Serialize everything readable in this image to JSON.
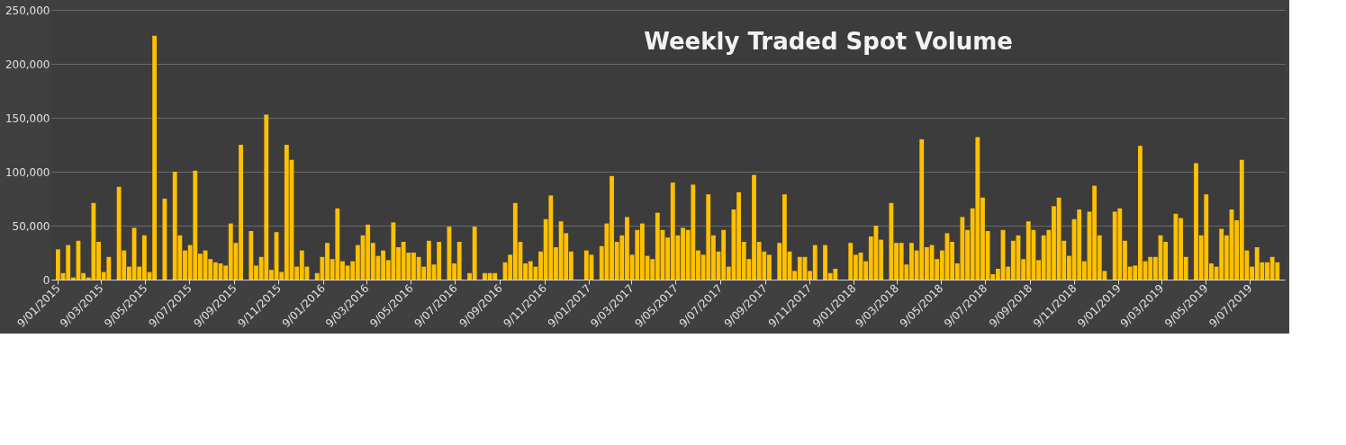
{
  "chart_data": {
    "type": "bar",
    "title": "Weekly Traded Spot Volume",
    "color": "#ffc000",
    "grid": "y",
    "ylim": [
      0,
      250000
    ],
    "yticks": [
      {
        "value": 0,
        "label": "0"
      },
      {
        "value": 50000,
        "label": "50,000"
      },
      {
        "value": 100000,
        "label": "100,000"
      },
      {
        "value": 150000,
        "label": "150,000"
      },
      {
        "value": 200000,
        "label": "200,000"
      },
      {
        "value": 250000,
        "label": "250,000"
      }
    ],
    "xlim": [
      "2015-01-06",
      "2019-08-20"
    ],
    "xticks": [
      {
        "value": "2015-01-09",
        "label": "9/01/2015"
      },
      {
        "value": "2015-03-09",
        "label": "9/03/2015"
      },
      {
        "value": "2015-05-09",
        "label": "9/05/2015"
      },
      {
        "value": "2015-07-09",
        "label": "9/07/2015"
      },
      {
        "value": "2015-09-09",
        "label": "9/09/2015"
      },
      {
        "value": "2015-11-09",
        "label": "9/11/2015"
      },
      {
        "value": "2016-01-09",
        "label": "9/01/2016"
      },
      {
        "value": "2016-03-09",
        "label": "9/03/2016"
      },
      {
        "value": "2016-05-09",
        "label": "9/05/2016"
      },
      {
        "value": "2016-07-09",
        "label": "9/07/2016"
      },
      {
        "value": "2016-09-09",
        "label": "9/09/2016"
      },
      {
        "value": "2016-11-09",
        "label": "9/11/2016"
      },
      {
        "value": "2017-01-09",
        "label": "9/01/2017"
      },
      {
        "value": "2017-03-09",
        "label": "9/03/2017"
      },
      {
        "value": "2017-05-09",
        "label": "9/05/2017"
      },
      {
        "value": "2017-07-09",
        "label": "9/07/2017"
      },
      {
        "value": "2017-09-09",
        "label": "9/09/2017"
      },
      {
        "value": "2017-11-09",
        "label": "9/11/2017"
      },
      {
        "value": "2018-01-09",
        "label": "9/01/2018"
      },
      {
        "value": "2018-03-09",
        "label": "9/03/2018"
      },
      {
        "value": "2018-05-09",
        "label": "9/05/2018"
      },
      {
        "value": "2018-07-09",
        "label": "9/07/2018"
      },
      {
        "value": "2018-09-09",
        "label": "9/09/2018"
      },
      {
        "value": "2018-11-09",
        "label": "9/11/2018"
      },
      {
        "value": "2019-01-09",
        "label": "9/01/2019"
      },
      {
        "value": "2019-03-09",
        "label": "9/03/2019"
      },
      {
        "value": "2019-05-09",
        "label": "9/05/2019"
      },
      {
        "value": "2019-07-09",
        "label": "9/07/2019"
      }
    ],
    "x": [
      "2015-01-09",
      "2015-01-16",
      "2015-01-23",
      "2015-01-30",
      "2015-02-06",
      "2015-02-13",
      "2015-02-20",
      "2015-02-27",
      "2015-03-06",
      "2015-03-13",
      "2015-03-20",
      "2015-03-27",
      "2015-04-03",
      "2015-04-10",
      "2015-04-17",
      "2015-04-24",
      "2015-05-01",
      "2015-05-08",
      "2015-05-15",
      "2015-05-22",
      "2015-05-29",
      "2015-06-05",
      "2015-06-12",
      "2015-06-19",
      "2015-06-26",
      "2015-07-03",
      "2015-07-10",
      "2015-07-17",
      "2015-07-24",
      "2015-07-31",
      "2015-08-07",
      "2015-08-14",
      "2015-08-21",
      "2015-08-28",
      "2015-09-04",
      "2015-09-11",
      "2015-09-18",
      "2015-09-25",
      "2015-10-02",
      "2015-10-09",
      "2015-10-16",
      "2015-10-23",
      "2015-10-30",
      "2015-11-06",
      "2015-11-13",
      "2015-11-20",
      "2015-11-27",
      "2015-12-04",
      "2015-12-11",
      "2015-12-18",
      "2015-12-25",
      "2016-01-01",
      "2016-01-08",
      "2016-01-15",
      "2016-01-22",
      "2016-01-29",
      "2016-02-05",
      "2016-02-12",
      "2016-02-19",
      "2016-02-26",
      "2016-03-04",
      "2016-03-11",
      "2016-03-18",
      "2016-03-25",
      "2016-04-01",
      "2016-04-08",
      "2016-04-15",
      "2016-04-22",
      "2016-04-29",
      "2016-05-06",
      "2016-05-13",
      "2016-05-20",
      "2016-05-27",
      "2016-06-03",
      "2016-06-10",
      "2016-06-17",
      "2016-06-24",
      "2016-07-01",
      "2016-07-08",
      "2016-07-15",
      "2016-07-22",
      "2016-07-29",
      "2016-08-05",
      "2016-08-12",
      "2016-08-19",
      "2016-08-26",
      "2016-09-02",
      "2016-09-09",
      "2016-09-16",
      "2016-09-23",
      "2016-09-30",
      "2016-10-07",
      "2016-10-14",
      "2016-10-21",
      "2016-10-28",
      "2016-11-04",
      "2016-11-11",
      "2016-11-18",
      "2016-11-25",
      "2016-12-02",
      "2016-12-09",
      "2016-12-16",
      "2016-12-23",
      "2016-12-30",
      "2017-01-06",
      "2017-01-13",
      "2017-01-20",
      "2017-01-27",
      "2017-02-03",
      "2017-02-10",
      "2017-02-17",
      "2017-02-24",
      "2017-03-03",
      "2017-03-10",
      "2017-03-17",
      "2017-03-24",
      "2017-03-31",
      "2017-04-07",
      "2017-04-14",
      "2017-04-21",
      "2017-04-28",
      "2017-05-05",
      "2017-05-12",
      "2017-05-19",
      "2017-05-26",
      "2017-06-02",
      "2017-06-09",
      "2017-06-16",
      "2017-06-23",
      "2017-06-30",
      "2017-07-07",
      "2017-07-14",
      "2017-07-21",
      "2017-07-28",
      "2017-08-04",
      "2017-08-11",
      "2017-08-18",
      "2017-08-25",
      "2017-09-01",
      "2017-09-08",
      "2017-09-15",
      "2017-09-22",
      "2017-09-29",
      "2017-10-06",
      "2017-10-13",
      "2017-10-20",
      "2017-10-27",
      "2017-11-03",
      "2017-11-10",
      "2017-11-17",
      "2017-11-24",
      "2017-12-01",
      "2017-12-08",
      "2017-12-15",
      "2017-12-22",
      "2017-12-29",
      "2018-01-05",
      "2018-01-12",
      "2018-01-19",
      "2018-01-26",
      "2018-02-02",
      "2018-02-09",
      "2018-02-16",
      "2018-02-23",
      "2018-03-02",
      "2018-03-09",
      "2018-03-16",
      "2018-03-23",
      "2018-03-30",
      "2018-04-06",
      "2018-04-13",
      "2018-04-20",
      "2018-04-27",
      "2018-05-04",
      "2018-05-11",
      "2018-05-18",
      "2018-05-25",
      "2018-06-01",
      "2018-06-08",
      "2018-06-15",
      "2018-06-22",
      "2018-06-29",
      "2018-07-06",
      "2018-07-13",
      "2018-07-20",
      "2018-07-27",
      "2018-08-03",
      "2018-08-10",
      "2018-08-17",
      "2018-08-24",
      "2018-08-31",
      "2018-09-07",
      "2018-09-14",
      "2018-09-21",
      "2018-09-28",
      "2018-10-05",
      "2018-10-12",
      "2018-10-19",
      "2018-10-26",
      "2018-11-02",
      "2018-11-09",
      "2018-11-16",
      "2018-11-23",
      "2018-11-30",
      "2018-12-07",
      "2018-12-14",
      "2018-12-21",
      "2018-12-28",
      "2019-01-04",
      "2019-01-11",
      "2019-01-18",
      "2019-01-25",
      "2019-02-01",
      "2019-02-08",
      "2019-02-15",
      "2019-02-22",
      "2019-03-01",
      "2019-03-08",
      "2019-03-15",
      "2019-03-22",
      "2019-03-29",
      "2019-04-05",
      "2019-04-12",
      "2019-04-19",
      "2019-04-26",
      "2019-05-03",
      "2019-05-10",
      "2019-05-17",
      "2019-05-24",
      "2019-05-31",
      "2019-06-07",
      "2019-06-14",
      "2019-06-21",
      "2019-06-28",
      "2019-07-05",
      "2019-07-12",
      "2019-07-19",
      "2019-07-26",
      "2019-08-02",
      "2019-08-09",
      "2019-08-16"
    ],
    "values": [
      28000,
      6000,
      32000,
      2000,
      36000,
      6000,
      2000,
      71000,
      35000,
      7000,
      21000,
      0,
      86000,
      27000,
      12000,
      48000,
      12000,
      41000,
      7000,
      226000,
      0,
      75000,
      0,
      100000,
      41000,
      27000,
      32000,
      101000,
      24000,
      27000,
      19000,
      16000,
      15000,
      13000,
      52000,
      34000,
      125000,
      0,
      45000,
      13000,
      21000,
      153000,
      9000,
      44000,
      7000,
      125000,
      111000,
      12000,
      27000,
      12000,
      0,
      6000,
      21000,
      34000,
      19000,
      66000,
      17000,
      13000,
      17000,
      32000,
      41000,
      51000,
      34000,
      22000,
      27000,
      18000,
      53000,
      30000,
      35000,
      25000,
      25000,
      21000,
      12000,
      36000,
      14000,
      35000,
      0,
      49000,
      15000,
      35000,
      0,
      6000,
      49000,
      0,
      6000,
      6000,
      6000,
      0,
      16000,
      23000,
      71000,
      35000,
      15000,
      17000,
      12000,
      26000,
      56000,
      78000,
      30000,
      54000,
      43000,
      26000,
      0,
      0,
      27000,
      23000,
      0,
      31000,
      52000,
      96000,
      35000,
      41000,
      58000,
      23000,
      46000,
      52000,
      22000,
      19000,
      62000,
      46000,
      39000,
      90000,
      41000,
      48000,
      46000,
      88000,
      27000,
      23000,
      79000,
      41000,
      26000,
      46000,
      12000,
      65000,
      81000,
      35000,
      19000,
      97000,
      35000,
      26000,
      23000,
      0,
      34000,
      79000,
      26000,
      8000,
      21000,
      21000,
      8000,
      32000,
      0,
      32000,
      6000,
      10000,
      0,
      0,
      34000,
      23000,
      25000,
      17000,
      40000,
      50000,
      37000,
      0,
      71000,
      34000,
      34000,
      14000,
      34000,
      27000,
      130000,
      30000,
      32000,
      19000,
      27000,
      43000,
      35000,
      15000,
      58000,
      46000,
      66000,
      132000,
      76000,
      45000,
      5000,
      10000,
      46000,
      12000,
      36000,
      41000,
      19000,
      54000,
      46000,
      18000,
      41000,
      46000,
      68000,
      76000,
      36000,
      22000,
      56000,
      65000,
      17000,
      63000,
      87000,
      41000,
      8000,
      0,
      63000,
      66000,
      36000,
      12000,
      13000,
      124000,
      17000,
      21000,
      21000,
      41000,
      35000,
      0,
      61000,
      57000,
      21000,
      0,
      108000,
      41000,
      79000,
      15000,
      12000,
      47000,
      41000,
      65000,
      55000,
      111000,
      27000,
      12000,
      30000,
      16000,
      16000,
      21000,
      16000
    ]
  }
}
